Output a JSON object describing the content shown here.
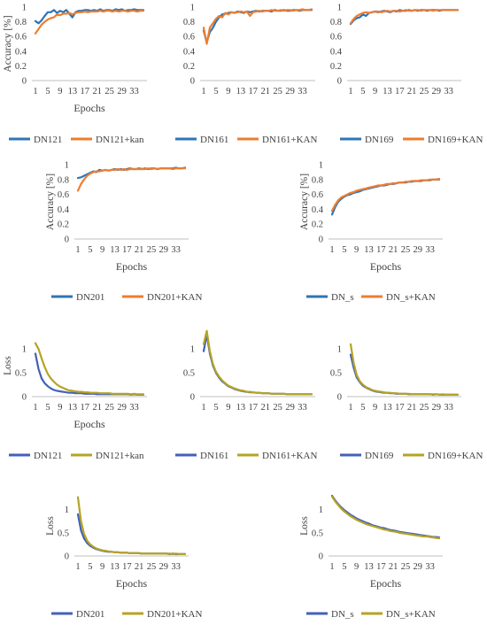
{
  "chart_data": [
    {
      "type": "line",
      "title": "",
      "xlabel": "Epochs",
      "ylabel": "Accuracy [%]",
      "ylim": [
        0,
        1
      ],
      "yticks": [
        "0",
        "0.2",
        "0.4",
        "0.6",
        "0.8",
        "1"
      ],
      "xticks": [
        "1",
        "5",
        "9",
        "13",
        "17",
        "21",
        "25",
        "29",
        "33"
      ],
      "legend": "bottom",
      "grid": false,
      "series": [
        {
          "name": "DN121",
          "color": "#2e75b6",
          "values": [
            0.81,
            0.78,
            0.82,
            0.88,
            0.93,
            0.93,
            0.96,
            0.92,
            0.95,
            0.93,
            0.96,
            0.91,
            0.86,
            0.93,
            0.95,
            0.95,
            0.96,
            0.96,
            0.95,
            0.96,
            0.95,
            0.97,
            0.95,
            0.96,
            0.96,
            0.95,
            0.97,
            0.96,
            0.97,
            0.95,
            0.96,
            0.96,
            0.97,
            0.96,
            0.96,
            0.96
          ]
        },
        {
          "name": "DN121+kan",
          "color": "#ed7d31",
          "values": [
            0.64,
            0.7,
            0.76,
            0.8,
            0.83,
            0.85,
            0.86,
            0.9,
            0.89,
            0.91,
            0.91,
            0.92,
            0.9,
            0.92,
            0.93,
            0.93,
            0.94,
            0.93,
            0.94,
            0.94,
            0.94,
            0.95,
            0.94,
            0.95,
            0.95,
            0.94,
            0.95,
            0.94,
            0.95,
            0.95,
            0.94,
            0.95,
            0.95,
            0.94,
            0.95,
            0.95
          ]
        }
      ]
    },
    {
      "type": "line",
      "title": "",
      "xlabel": "",
      "ylabel": "",
      "ylim": [
        0,
        1
      ],
      "yticks": [
        "0",
        "0.2",
        "0.4",
        "0.6",
        "0.8",
        "1"
      ],
      "xticks": [
        "1",
        "5",
        "9",
        "13",
        "17",
        "21",
        "25",
        "29",
        "33"
      ],
      "legend": "bottom",
      "grid": false,
      "series": [
        {
          "name": "DN161",
          "color": "#2e75b6",
          "values": [
            0.68,
            0.52,
            0.66,
            0.72,
            0.8,
            0.86,
            0.9,
            0.91,
            0.92,
            0.93,
            0.92,
            0.94,
            0.93,
            0.92,
            0.94,
            0.93,
            0.94,
            0.95,
            0.94,
            0.95,
            0.95,
            0.95,
            0.94,
            0.96,
            0.95,
            0.95,
            0.96,
            0.95,
            0.95,
            0.96,
            0.96,
            0.95,
            0.96,
            0.96,
            0.96,
            0.96
          ]
        },
        {
          "name": "DN161+KAN",
          "color": "#ed7d31",
          "values": [
            0.72,
            0.5,
            0.72,
            0.78,
            0.84,
            0.88,
            0.86,
            0.92,
            0.9,
            0.93,
            0.92,
            0.93,
            0.94,
            0.93,
            0.94,
            0.88,
            0.93,
            0.94,
            0.95,
            0.94,
            0.95,
            0.95,
            0.96,
            0.95,
            0.95,
            0.96,
            0.95,
            0.96,
            0.96,
            0.95,
            0.96,
            0.96,
            0.97,
            0.96,
            0.96,
            0.97
          ]
        }
      ]
    },
    {
      "type": "line",
      "title": "",
      "xlabel": "",
      "ylabel": "",
      "ylim": [
        0,
        1
      ],
      "yticks": [
        "0",
        "0.2",
        "0.4",
        "0.6",
        "0.8",
        "1"
      ],
      "xticks": [
        "1",
        "5",
        "9",
        "13",
        "17",
        "21",
        "25",
        "29",
        "33"
      ],
      "legend": "bottom",
      "grid": false,
      "series": [
        {
          "name": "DN169",
          "color": "#2e75b6",
          "values": [
            0.77,
            0.82,
            0.85,
            0.86,
            0.9,
            0.88,
            0.92,
            0.93,
            0.94,
            0.93,
            0.94,
            0.95,
            0.94,
            0.93,
            0.95,
            0.94,
            0.96,
            0.95,
            0.95,
            0.96,
            0.95,
            0.96,
            0.95,
            0.96,
            0.96,
            0.95,
            0.96,
            0.96,
            0.96,
            0.95,
            0.96,
            0.96,
            0.96,
            0.96,
            0.96,
            0.96
          ]
        },
        {
          "name": "DN169+KAN",
          "color": "#ed7d31",
          "values": [
            0.78,
            0.84,
            0.88,
            0.9,
            0.92,
            0.93,
            0.92,
            0.93,
            0.94,
            0.94,
            0.93,
            0.94,
            0.95,
            0.94,
            0.95,
            0.95,
            0.94,
            0.95,
            0.96,
            0.95,
            0.95,
            0.96,
            0.96,
            0.95,
            0.96,
            0.96,
            0.96,
            0.95,
            0.96,
            0.96,
            0.96,
            0.96,
            0.96,
            0.96,
            0.96,
            0.96
          ]
        }
      ]
    },
    {
      "type": "line",
      "title": "",
      "xlabel": "Epochs",
      "ylabel": "Accuracy [%]",
      "ylim": [
        0,
        1
      ],
      "yticks": [
        "0",
        "0.2",
        "0.4",
        "0.6",
        "0.8",
        "1"
      ],
      "xticks": [
        "1",
        "5",
        "9",
        "13",
        "17",
        "21",
        "25",
        "29",
        "33"
      ],
      "legend": "bottom",
      "grid": false,
      "series": [
        {
          "name": "DN201",
          "color": "#2e75b6",
          "values": [
            0.82,
            0.83,
            0.85,
            0.87,
            0.89,
            0.91,
            0.9,
            0.93,
            0.92,
            0.93,
            0.92,
            0.93,
            0.94,
            0.93,
            0.94,
            0.93,
            0.94,
            0.95,
            0.94,
            0.94,
            0.95,
            0.94,
            0.95,
            0.94,
            0.95,
            0.95,
            0.94,
            0.95,
            0.95,
            0.95,
            0.95,
            0.95,
            0.96,
            0.95,
            0.95,
            0.96
          ]
        },
        {
          "name": "DN201+KAN",
          "color": "#ed7d31",
          "values": [
            0.65,
            0.74,
            0.8,
            0.85,
            0.88,
            0.9,
            0.91,
            0.91,
            0.92,
            0.93,
            0.92,
            0.93,
            0.93,
            0.94,
            0.93,
            0.94,
            0.93,
            0.94,
            0.94,
            0.94,
            0.94,
            0.94,
            0.94,
            0.95,
            0.94,
            0.95,
            0.94,
            0.95,
            0.95,
            0.95,
            0.95,
            0.94,
            0.95,
            0.95,
            0.95,
            0.95
          ]
        }
      ]
    },
    {
      "type": "line",
      "title": "",
      "xlabel": "Epochs",
      "ylabel": "Accuracy [%]",
      "ylim": [
        0,
        1
      ],
      "yticks": [
        "0",
        "0.2",
        "0.4",
        "0.6",
        "0.8",
        "1"
      ],
      "xticks": [
        "1",
        "5",
        "9",
        "13",
        "17",
        "21",
        "25",
        "29",
        "33"
      ],
      "legend": "bottom",
      "grid": false,
      "series": [
        {
          "name": "DN_s",
          "color": "#2e75b6",
          "values": [
            0.33,
            0.43,
            0.5,
            0.54,
            0.57,
            0.59,
            0.6,
            0.62,
            0.63,
            0.64,
            0.66,
            0.67,
            0.68,
            0.69,
            0.7,
            0.71,
            0.72,
            0.72,
            0.73,
            0.74,
            0.74,
            0.75,
            0.76,
            0.76,
            0.76,
            0.77,
            0.77,
            0.78,
            0.78,
            0.78,
            0.79,
            0.79,
            0.79,
            0.8,
            0.8,
            0.8
          ]
        },
        {
          "name": "DN_s+KAN",
          "color": "#ed7d31",
          "values": [
            0.38,
            0.46,
            0.52,
            0.56,
            0.58,
            0.6,
            0.62,
            0.63,
            0.65,
            0.66,
            0.67,
            0.68,
            0.69,
            0.7,
            0.71,
            0.72,
            0.72,
            0.73,
            0.74,
            0.74,
            0.75,
            0.75,
            0.76,
            0.76,
            0.77,
            0.77,
            0.78,
            0.78,
            0.78,
            0.79,
            0.79,
            0.79,
            0.8,
            0.8,
            0.8,
            0.81
          ]
        }
      ]
    },
    {
      "type": "line",
      "title": "",
      "xlabel": "Epochs",
      "ylabel": "Loss",
      "ylim": [
        0,
        1.3
      ],
      "yticks": [
        "0",
        "0.5",
        "1"
      ],
      "xticks": [
        "1",
        "5",
        "9",
        "13",
        "17",
        "21",
        "25",
        "29",
        "33"
      ],
      "legend": "bottom",
      "grid": false,
      "series": [
        {
          "name": "DN121",
          "color": "#4361b8",
          "values": [
            0.9,
            0.58,
            0.38,
            0.28,
            0.22,
            0.17,
            0.14,
            0.12,
            0.11,
            0.1,
            0.09,
            0.08,
            0.08,
            0.07,
            0.07,
            0.07,
            0.06,
            0.06,
            0.06,
            0.06,
            0.05,
            0.05,
            0.05,
            0.05,
            0.05,
            0.05,
            0.05,
            0.05,
            0.05,
            0.05,
            0.05,
            0.04,
            0.05,
            0.04,
            0.04,
            0.04
          ]
        },
        {
          "name": "DN121+kan",
          "color": "#b5a326",
          "values": [
            1.12,
            1.0,
            0.8,
            0.62,
            0.48,
            0.38,
            0.31,
            0.25,
            0.21,
            0.18,
            0.15,
            0.13,
            0.12,
            0.11,
            0.1,
            0.1,
            0.09,
            0.09,
            0.08,
            0.08,
            0.08,
            0.07,
            0.07,
            0.07,
            0.07,
            0.06,
            0.06,
            0.06,
            0.06,
            0.06,
            0.06,
            0.05,
            0.06,
            0.05,
            0.05,
            0.05
          ]
        }
      ]
    },
    {
      "type": "line",
      "title": "",
      "xlabel": "",
      "ylabel": "",
      "ylim": [
        0,
        1.3
      ],
      "yticks": [
        "0",
        "0.5",
        "1"
      ],
      "xticks": [
        "1",
        "5",
        "9",
        "13",
        "17",
        "21",
        "25",
        "29",
        "33"
      ],
      "legend": "bottom",
      "grid": false,
      "series": [
        {
          "name": "DN161",
          "color": "#4361b8",
          "values": [
            0.95,
            1.3,
            0.9,
            0.65,
            0.5,
            0.4,
            0.32,
            0.27,
            0.22,
            0.19,
            0.16,
            0.14,
            0.12,
            0.11,
            0.1,
            0.09,
            0.09,
            0.08,
            0.08,
            0.07,
            0.07,
            0.07,
            0.06,
            0.06,
            0.06,
            0.06,
            0.06,
            0.05,
            0.05,
            0.05,
            0.05,
            0.05,
            0.05,
            0.05,
            0.05,
            0.05
          ]
        },
        {
          "name": "DN161+KAN",
          "color": "#b5a326",
          "values": [
            1.1,
            1.38,
            0.95,
            0.68,
            0.52,
            0.42,
            0.34,
            0.28,
            0.23,
            0.2,
            0.17,
            0.15,
            0.13,
            0.12,
            0.1,
            0.1,
            0.09,
            0.08,
            0.08,
            0.07,
            0.07,
            0.07,
            0.06,
            0.06,
            0.06,
            0.06,
            0.06,
            0.05,
            0.05,
            0.05,
            0.05,
            0.05,
            0.05,
            0.05,
            0.05,
            0.05
          ]
        }
      ]
    },
    {
      "type": "line",
      "title": "",
      "xlabel": "",
      "ylabel": "",
      "ylim": [
        0,
        1.3
      ],
      "yticks": [
        "0",
        "0.5",
        "1"
      ],
      "xticks": [
        "1",
        "5",
        "9",
        "13",
        "17",
        "21",
        "25",
        "29",
        "33"
      ],
      "legend": "bottom",
      "grid": false,
      "series": [
        {
          "name": "DN169",
          "color": "#4361b8",
          "values": [
            0.88,
            0.6,
            0.4,
            0.3,
            0.23,
            0.19,
            0.16,
            0.13,
            0.11,
            0.1,
            0.09,
            0.08,
            0.08,
            0.07,
            0.07,
            0.06,
            0.06,
            0.06,
            0.06,
            0.05,
            0.05,
            0.05,
            0.05,
            0.05,
            0.05,
            0.05,
            0.05,
            0.04,
            0.05,
            0.04,
            0.04,
            0.04,
            0.04,
            0.04,
            0.04,
            0.04
          ]
        },
        {
          "name": "DN169+KAN",
          "color": "#b5a326",
          "values": [
            1.1,
            0.7,
            0.45,
            0.32,
            0.25,
            0.2,
            0.17,
            0.14,
            0.12,
            0.11,
            0.1,
            0.09,
            0.08,
            0.08,
            0.07,
            0.07,
            0.06,
            0.06,
            0.06,
            0.06,
            0.05,
            0.05,
            0.05,
            0.05,
            0.05,
            0.05,
            0.05,
            0.05,
            0.05,
            0.04,
            0.05,
            0.04,
            0.04,
            0.04,
            0.04,
            0.04
          ]
        }
      ]
    },
    {
      "type": "line",
      "title": "",
      "xlabel": "Epochs",
      "ylabel": "Loss",
      "ylim": [
        0,
        1.3
      ],
      "yticks": [
        "0",
        "0.5",
        "1"
      ],
      "xticks": [
        "1",
        "5",
        "9",
        "13",
        "17",
        "21",
        "25",
        "29",
        "33"
      ],
      "legend": "bottom",
      "grid": false,
      "series": [
        {
          "name": "DN201",
          "color": "#4361b8",
          "values": [
            0.9,
            0.55,
            0.38,
            0.28,
            0.22,
            0.18,
            0.15,
            0.13,
            0.11,
            0.1,
            0.09,
            0.09,
            0.08,
            0.08,
            0.07,
            0.07,
            0.07,
            0.06,
            0.06,
            0.06,
            0.06,
            0.05,
            0.05,
            0.05,
            0.05,
            0.05,
            0.05,
            0.05,
            0.05,
            0.05,
            0.04,
            0.05,
            0.04,
            0.04,
            0.04,
            0.04
          ]
        },
        {
          "name": "DN201+KAN",
          "color": "#b5a326",
          "values": [
            1.27,
            0.75,
            0.48,
            0.33,
            0.25,
            0.2,
            0.16,
            0.14,
            0.12,
            0.11,
            0.1,
            0.09,
            0.08,
            0.08,
            0.07,
            0.07,
            0.07,
            0.06,
            0.06,
            0.06,
            0.06,
            0.05,
            0.05,
            0.05,
            0.05,
            0.05,
            0.05,
            0.05,
            0.05,
            0.05,
            0.05,
            0.04,
            0.05,
            0.04,
            0.04,
            0.04
          ]
        }
      ]
    },
    {
      "type": "line",
      "title": "",
      "xlabel": "Epochs",
      "ylabel": "Loss",
      "ylim": [
        0,
        1.3
      ],
      "yticks": [
        "0",
        "0.5",
        "1"
      ],
      "xticks": [
        "1",
        "5",
        "9",
        "13",
        "17",
        "21",
        "25",
        "29",
        "33"
      ],
      "legend": "bottom",
      "grid": false,
      "series": [
        {
          "name": "DN_s",
          "color": "#4361b8",
          "values": [
            1.3,
            1.2,
            1.12,
            1.05,
            0.99,
            0.94,
            0.89,
            0.85,
            0.81,
            0.78,
            0.75,
            0.72,
            0.7,
            0.67,
            0.65,
            0.63,
            0.61,
            0.6,
            0.58,
            0.56,
            0.55,
            0.54,
            0.52,
            0.51,
            0.5,
            0.49,
            0.48,
            0.47,
            0.46,
            0.45,
            0.44,
            0.43,
            0.42,
            0.41,
            0.41,
            0.4
          ]
        },
        {
          "name": "DN_s+KAN",
          "color": "#b5a326",
          "values": [
            1.28,
            1.18,
            1.1,
            1.02,
            0.96,
            0.91,
            0.86,
            0.82,
            0.78,
            0.75,
            0.72,
            0.69,
            0.67,
            0.65,
            0.63,
            0.61,
            0.59,
            0.57,
            0.56,
            0.54,
            0.53,
            0.52,
            0.5,
            0.49,
            0.48,
            0.47,
            0.46,
            0.45,
            0.44,
            0.43,
            0.42,
            0.42,
            0.41,
            0.4,
            0.39,
            0.38
          ]
        }
      ]
    }
  ]
}
